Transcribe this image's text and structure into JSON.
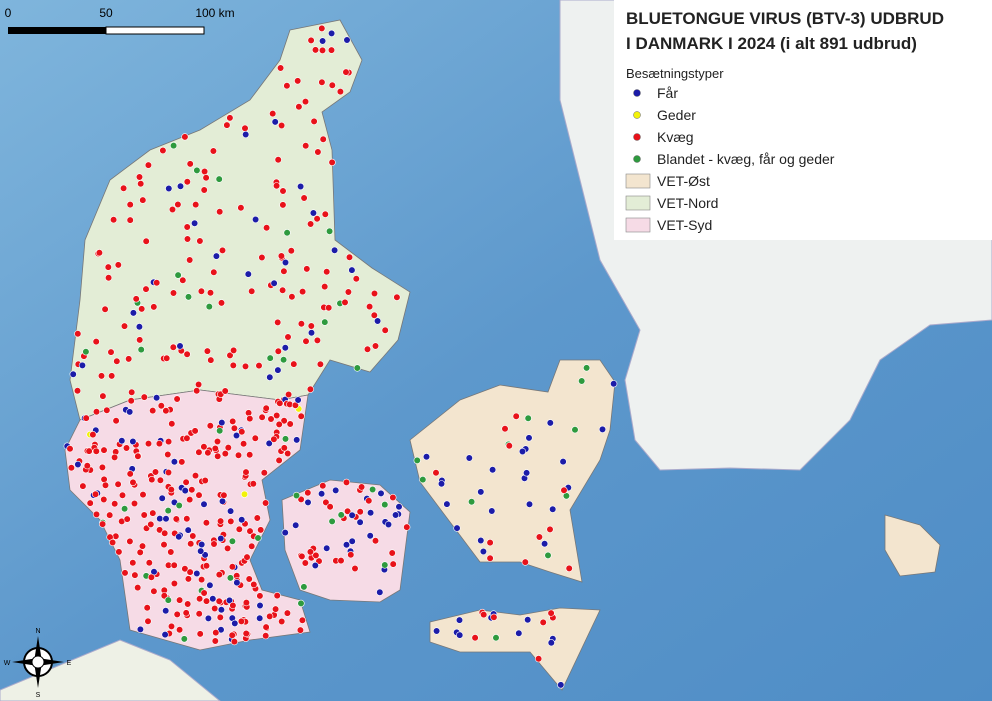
{
  "header": {
    "title_line1": "BLUETONGUE VIRUS (BTV-3) UDBRUD",
    "title_line2": "I DANMARK I 2024 (i alt 891 udbrud)"
  },
  "legend": {
    "title": "Besætningstyper",
    "herd_types": [
      {
        "label": "Får",
        "color": "#1c1ca8"
      },
      {
        "label": "Geder",
        "color": "#f2f20a"
      },
      {
        "label": "Kvæg",
        "color": "#e8121a"
      },
      {
        "label": "Blandet - kvæg, får og geder",
        "color": "#2e9a3e"
      }
    ],
    "regions": [
      {
        "label": "VET-Øst",
        "color": "#f3e5cf"
      },
      {
        "label": "VET-Nord",
        "color": "#e3edd6"
      },
      {
        "label": "VET-Syd",
        "color": "#f6dbe6"
      }
    ]
  },
  "scale_bar": {
    "labels": [
      "0",
      "50",
      "100 km"
    ]
  },
  "compass": {
    "north": "N",
    "east": "E",
    "south": "S",
    "west": "W"
  }
}
